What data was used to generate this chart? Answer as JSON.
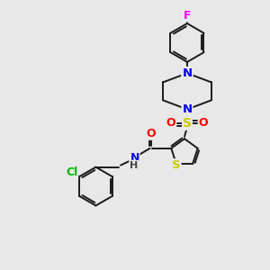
{
  "background_color": "#e8e8e8",
  "bond_color": "#1a1a1a",
  "atom_colors": {
    "F": "#ff00ff",
    "N": "#0000ee",
    "O": "#ff0000",
    "S": "#cccc00",
    "Cl": "#00bb00",
    "NH": "#008888"
  },
  "figsize": [
    3.0,
    3.0
  ],
  "dpi": 100
}
